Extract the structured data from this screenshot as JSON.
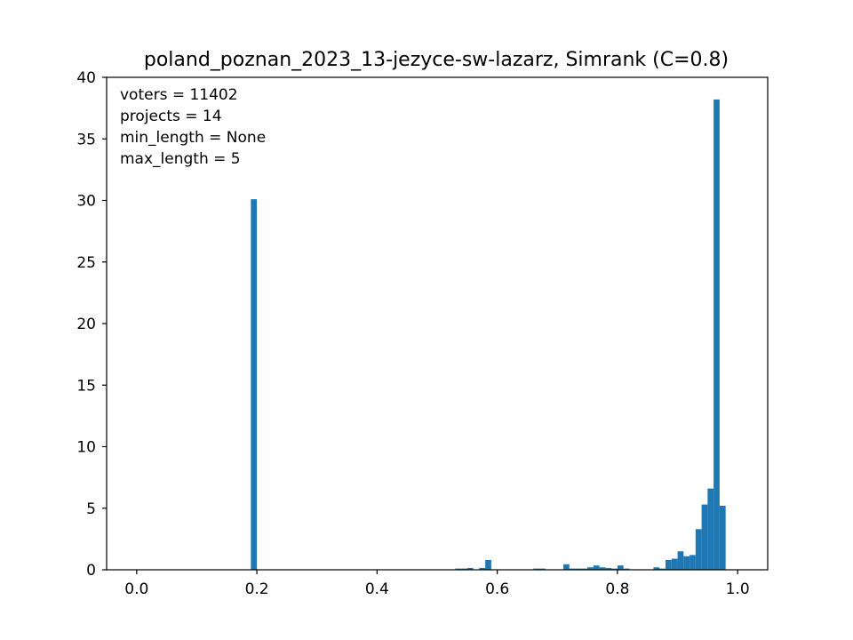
{
  "chart_data": {
    "type": "bar",
    "title": "poland_poznan_2023_13-jezyce-sw-lazarz, Simrank (C=0.8)",
    "xlabel": "",
    "ylabel": "",
    "xlim": [
      -0.05,
      1.05
    ],
    "ylim": [
      0,
      40
    ],
    "xticks": [
      0.0,
      0.2,
      0.4,
      0.6,
      0.8,
      1.0
    ],
    "xtick_labels": [
      "0.0",
      "0.2",
      "0.4",
      "0.6",
      "0.8",
      "1.0"
    ],
    "yticks": [
      0,
      5,
      10,
      15,
      20,
      25,
      30,
      35,
      40
    ],
    "ytick_labels": [
      "0",
      "5",
      "10",
      "15",
      "20",
      "25",
      "30",
      "35",
      "40"
    ],
    "grid": false,
    "color": "#1f77b4",
    "bin_width": 0.01,
    "bins": [
      {
        "x": 0.19,
        "value": 30.1
      },
      {
        "x": 0.53,
        "value": 0.1
      },
      {
        "x": 0.54,
        "value": 0.1
      },
      {
        "x": 0.55,
        "value": 0.15
      },
      {
        "x": 0.57,
        "value": 0.15
      },
      {
        "x": 0.58,
        "value": 0.8
      },
      {
        "x": 0.66,
        "value": 0.1
      },
      {
        "x": 0.67,
        "value": 0.1
      },
      {
        "x": 0.71,
        "value": 0.45
      },
      {
        "x": 0.72,
        "value": 0.1
      },
      {
        "x": 0.73,
        "value": 0.1
      },
      {
        "x": 0.74,
        "value": 0.1
      },
      {
        "x": 0.75,
        "value": 0.2
      },
      {
        "x": 0.76,
        "value": 0.35
      },
      {
        "x": 0.77,
        "value": 0.2
      },
      {
        "x": 0.78,
        "value": 0.15
      },
      {
        "x": 0.79,
        "value": 0.1
      },
      {
        "x": 0.8,
        "value": 0.35
      },
      {
        "x": 0.81,
        "value": 0.1
      },
      {
        "x": 0.86,
        "value": 0.2
      },
      {
        "x": 0.87,
        "value": 0.1
      },
      {
        "x": 0.88,
        "value": 0.8
      },
      {
        "x": 0.89,
        "value": 0.9
      },
      {
        "x": 0.9,
        "value": 1.5
      },
      {
        "x": 0.91,
        "value": 1.1
      },
      {
        "x": 0.92,
        "value": 1.2
      },
      {
        "x": 0.93,
        "value": 3.3
      },
      {
        "x": 0.94,
        "value": 5.3
      },
      {
        "x": 0.95,
        "value": 6.6
      },
      {
        "x": 0.96,
        "value": 38.2
      },
      {
        "x": 0.97,
        "value": 5.2
      }
    ],
    "annotations": [
      "voters = 11402",
      "projects = 14",
      "min_length = None",
      "max_length = 5"
    ],
    "annotation_position": "top-left"
  }
}
